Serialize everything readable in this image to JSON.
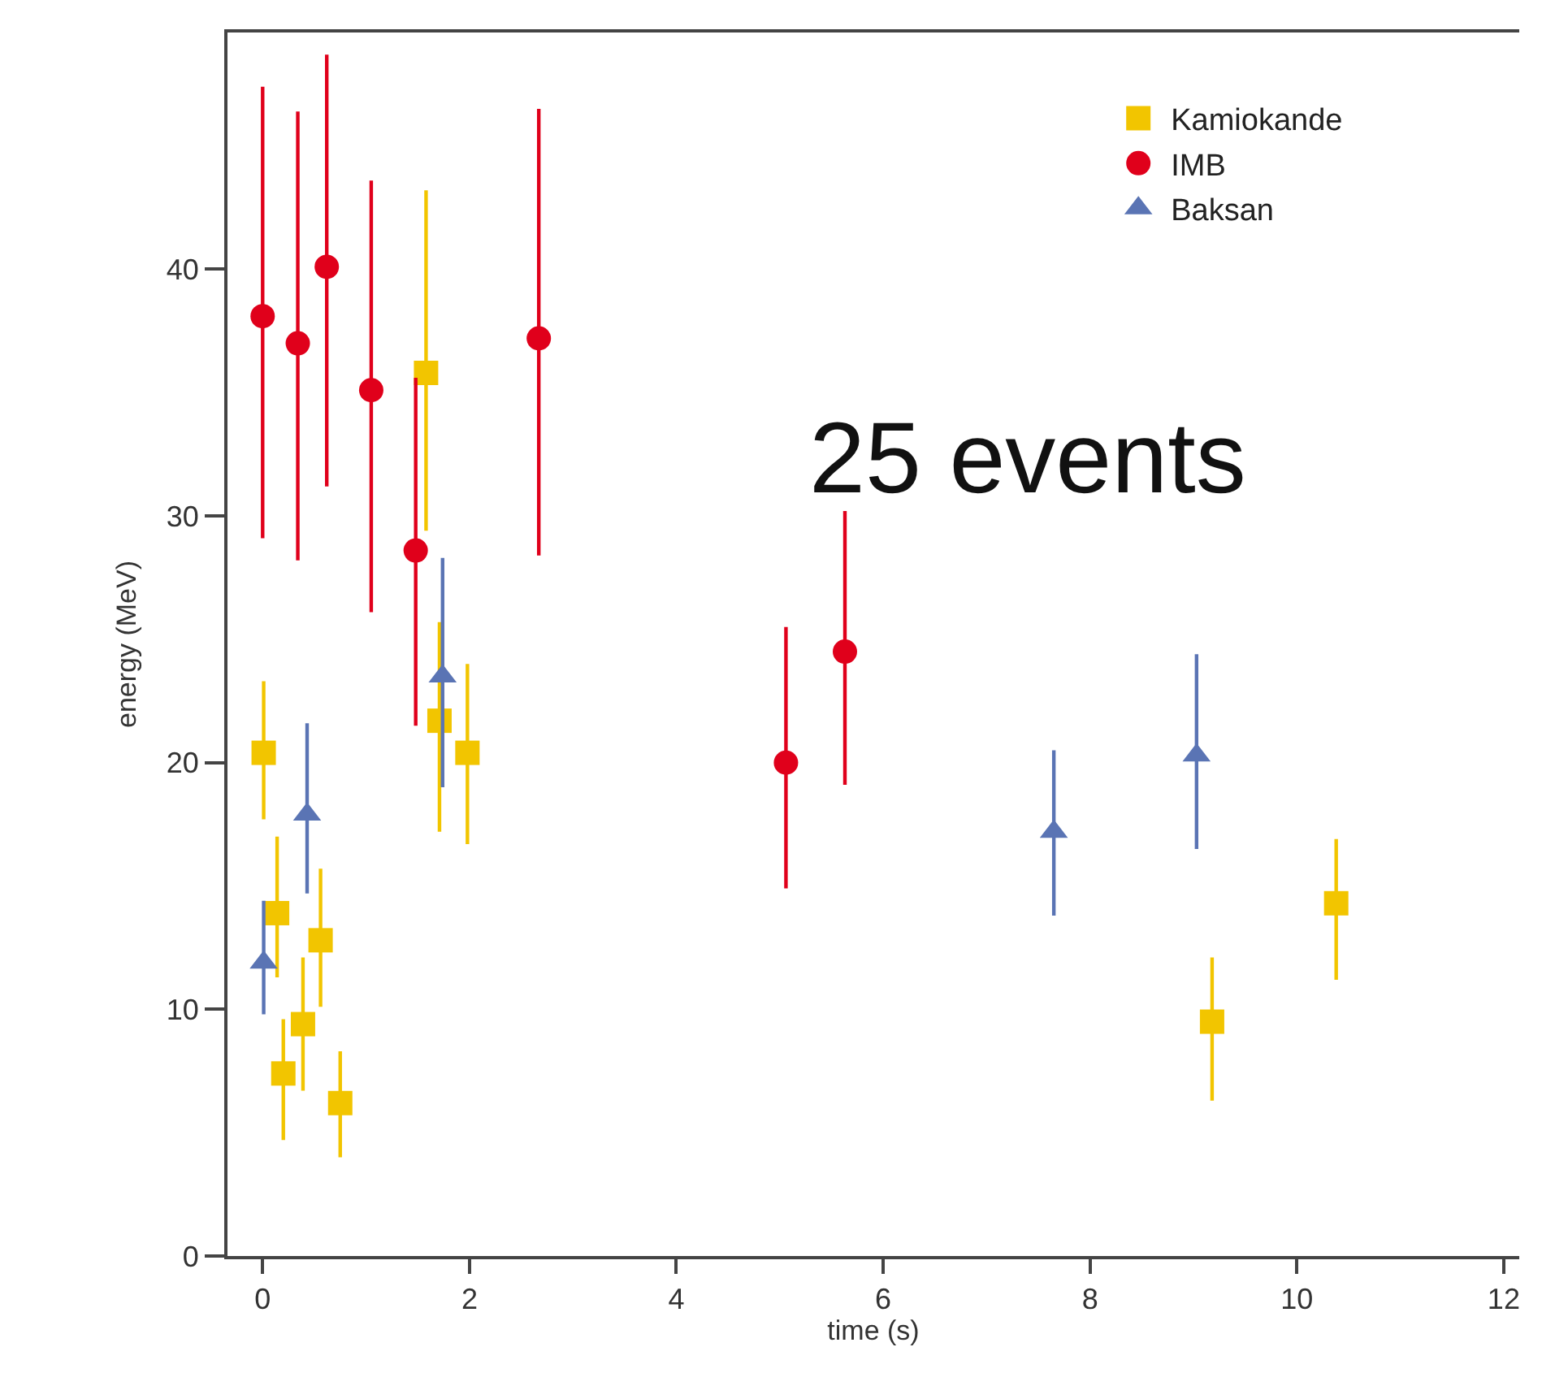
{
  "chart_data": {
    "type": "scatter",
    "xlabel": "time (s)",
    "ylabel": "energy (MeV)",
    "annotations": [
      "25 events"
    ],
    "xlim": [
      -0.34,
      12.15
    ],
    "xticks": [
      0,
      2,
      4,
      6,
      8,
      10,
      12
    ],
    "ylim": [
      0,
      49.6
    ],
    "yticks": [
      0,
      10,
      20,
      30,
      40
    ],
    "legend": "top right",
    "series": [
      {
        "name": "Kamiokande",
        "color": "#f2c500",
        "marker": "square",
        "x": [
          0.01,
          0.14,
          0.2,
          0.39,
          0.56,
          0.75,
          1.58,
          1.71,
          1.98,
          9.18,
          10.38
        ],
        "values": [
          20.4,
          13.9,
          7.4,
          9.4,
          12.8,
          6.2,
          35.8,
          21.7,
          20.4,
          9.5,
          14.3
        ],
        "errors": [
          [
            17.7,
            23.3
          ],
          [
            11.3,
            17.0
          ],
          [
            4.7,
            9.6
          ],
          [
            6.7,
            12.1
          ],
          [
            10.1,
            15.7
          ],
          [
            4.0,
            8.3
          ],
          [
            29.4,
            43.2
          ],
          [
            17.2,
            25.7
          ],
          [
            16.7,
            24.0
          ],
          [
            6.3,
            12.1
          ],
          [
            11.2,
            16.9
          ]
        ]
      },
      {
        "name": "IMB",
        "color": "#e0001b",
        "marker": "circle",
        "x": [
          0.0,
          0.34,
          0.62,
          1.05,
          1.48,
          2.67,
          5.06,
          5.63
        ],
        "values": [
          38.1,
          37.0,
          40.1,
          35.1,
          28.6,
          37.2,
          20.0,
          24.5
        ],
        "errors": [
          [
            29.1,
            47.4
          ],
          [
            28.2,
            46.4
          ],
          [
            31.2,
            48.7
          ],
          [
            26.1,
            43.6
          ],
          [
            21.5,
            35.6
          ],
          [
            28.4,
            46.5
          ],
          [
            14.9,
            25.5
          ],
          [
            19.1,
            30.2
          ]
        ]
      },
      {
        "name": "Baksan",
        "color": "#5a74b4",
        "marker": "triangle",
        "x": [
          0.01,
          0.43,
          1.74,
          7.65,
          9.03
        ],
        "values": [
          11.9,
          17.9,
          23.5,
          17.2,
          20.3
        ],
        "errors": [
          [
            9.8,
            14.4
          ],
          [
            14.7,
            21.6
          ],
          [
            19.0,
            28.3
          ],
          [
            13.8,
            20.5
          ],
          [
            16.5,
            24.4
          ]
        ]
      }
    ]
  }
}
